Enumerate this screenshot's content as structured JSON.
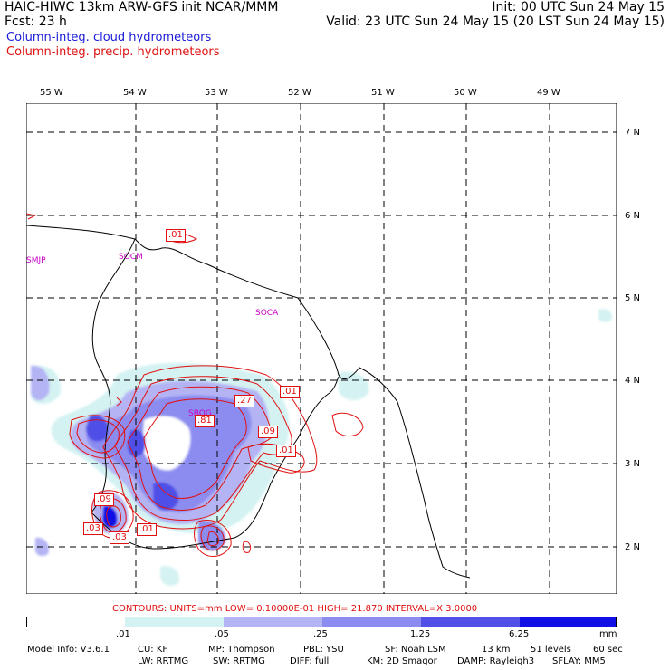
{
  "header": {
    "line1_left": "HAIC-HIWC 13km ARW-GFS init   NCAR/MMM",
    "line1_right": "Init: 00 UTC Sun 24 May 15",
    "line2_left": "Fcst:    23 h",
    "line2_right": "Valid: 23 UTC Sun 24 May 15 (20 LST Sun 24 May 15)",
    "field_cloud": "Column-integ. cloud hydrometeors",
    "field_precip": "Column-integ. precip. hydrometeors"
  },
  "longitude_ticks": [
    "55 W",
    "54 W",
    "53 W",
    "52 W",
    "51 W",
    "50 W",
    "49 W"
  ],
  "latitude_ticks": [
    "7 N",
    "6 N",
    "5 N",
    "4 N",
    "3 N",
    "2 N"
  ],
  "stations": [
    "SMJP",
    "SOCM",
    "SOCA",
    "SBOG"
  ],
  "contour_labels": [
    ".01",
    ".27",
    ".01",
    ".81",
    ".09",
    ".01",
    ".09",
    ".03",
    ".03",
    ".01"
  ],
  "contours_line": "CONTOURS:  UNITS=mm   LOW= 0.10000E-01   HIGH=  21.870      INTERVAL=X  3.0000",
  "colorbar": {
    "labels": [
      ".01",
      ".05",
      ".25",
      "1.25",
      "6.25"
    ],
    "unit": "mm",
    "colors": [
      "#ffffff",
      "#d4f2f2",
      "#b4b4f4",
      "#8c8cf0",
      "#5050e8",
      "#1010e6"
    ]
  },
  "footer": {
    "line1": [
      "Model Info: V3.6.1",
      "CU: KF",
      "MP: Thompson",
      "PBL: YSU",
      "SF: Noah LSM",
      "13 km",
      "51 levels",
      "60 sec"
    ],
    "line2": [
      "LW: RRTMG",
      "SW: RRTMG",
      "DIFF: full",
      "KM: 2D Smagor",
      "DAMP: Rayleigh3",
      "SFLAY: MM5"
    ]
  }
}
